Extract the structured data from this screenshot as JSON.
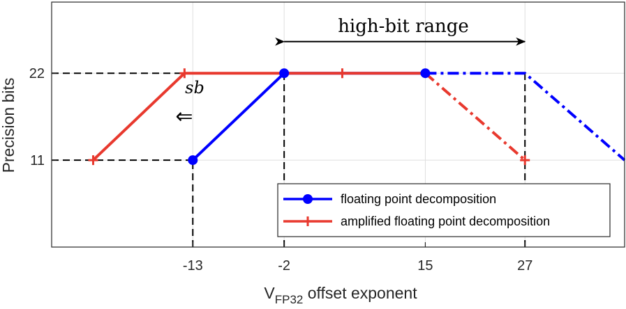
{
  "chart_data": {
    "type": "line",
    "xlabel_main": "V",
    "xlabel_sub": "FP32",
    "xlabel_rest": " offset exponent",
    "ylabel": "Precision bits",
    "xlim": [
      -30,
      39
    ],
    "ylim": [
      0,
      31
    ],
    "grid": true,
    "legend_position": "bottom-right",
    "x_ticks": [
      -13,
      -2,
      15,
      27
    ],
    "y_ticks": [
      11,
      22
    ],
    "x_tick_labels": [
      "-13",
      "-2",
      "15",
      "27"
    ],
    "y_tick_labels": [
      "11",
      "22"
    ],
    "series": [
      {
        "name": "floating point decomposition",
        "color": "#0000ff",
        "marker": "circle",
        "solid": {
          "x": [
            -13,
            -2,
            15
          ],
          "y": [
            11,
            22,
            22
          ]
        },
        "dashdot": {
          "x": [
            15,
            27,
            39
          ],
          "y": [
            22,
            22,
            11
          ]
        },
        "markers": {
          "x": [
            -13,
            -2,
            15
          ],
          "y": [
            11,
            22,
            22
          ]
        }
      },
      {
        "name": "amplified floating point decomposition",
        "color": "#e8392e",
        "marker": "plus",
        "solid": {
          "x": [
            -25,
            -14,
            5,
            15
          ],
          "y": [
            11,
            22,
            22,
            22
          ]
        },
        "dashdot": {
          "x": [
            15,
            27
          ],
          "y": [
            22,
            11
          ]
        },
        "markers": {
          "x": [
            -25,
            -14,
            5,
            27
          ],
          "y": [
            11,
            22,
            22,
            11
          ]
        }
      }
    ],
    "reference_lines": [
      {
        "x": [
          -30,
          -2
        ],
        "y": [
          22,
          22
        ]
      },
      {
        "x": [
          -30,
          -13
        ],
        "y": [
          11,
          11
        ]
      },
      {
        "x": [
          -13,
          -13
        ],
        "y": [
          0,
          11
        ]
      },
      {
        "x": [
          -2,
          -2
        ],
        "y": [
          0,
          22
        ]
      },
      {
        "x": [
          27,
          27
        ],
        "y": [
          0,
          22
        ]
      }
    ],
    "annotations": {
      "range_label": "high-bit range",
      "range_arrow": {
        "x": [
          -2,
          27
        ],
        "y": 26
      },
      "shift_label": "sb",
      "shift_arrow_glyph": "⇐"
    }
  }
}
